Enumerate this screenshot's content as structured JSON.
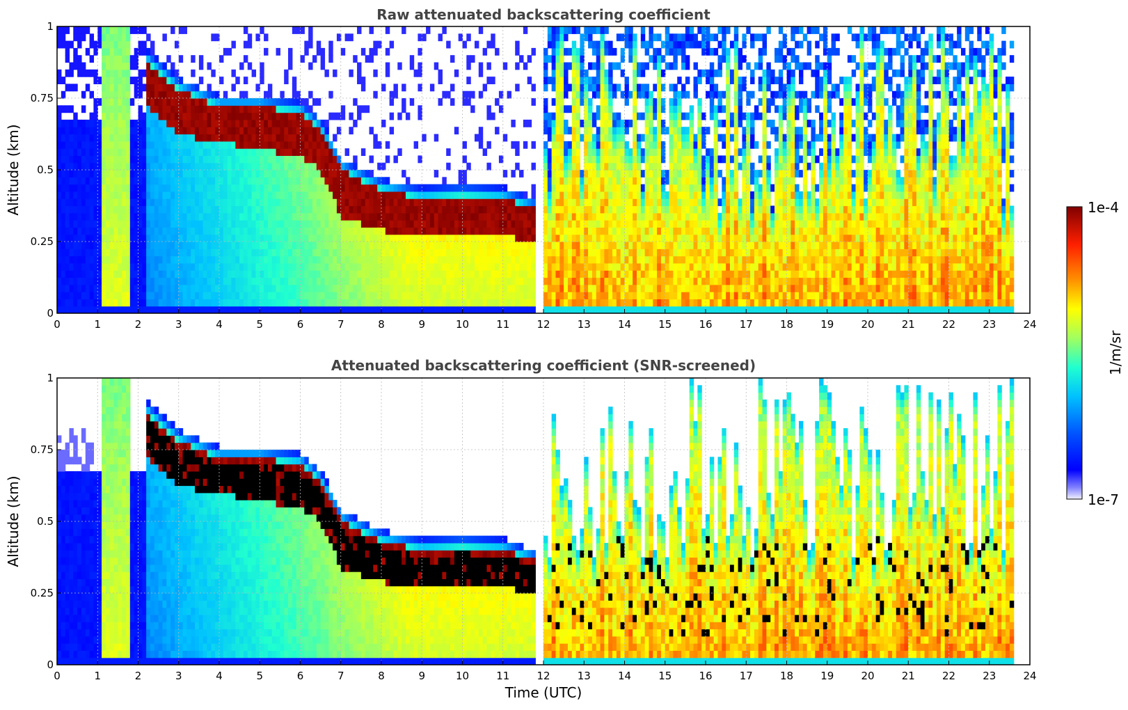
{
  "chart_data": [
    {
      "type": "heatmap",
      "title": "Raw attenuated backscattering coefficient",
      "xlabel": "",
      "ylabel": "Altitude (km)",
      "xlim": [
        0,
        24
      ],
      "ylim": [
        0,
        1
      ],
      "xticks": [
        "0",
        "1",
        "2",
        "3",
        "4",
        "5",
        "6",
        "7",
        "8",
        "9",
        "10",
        "11",
        "12",
        "13",
        "14",
        "15",
        "16",
        "17",
        "18",
        "19",
        "20",
        "21",
        "22",
        "23",
        "24"
      ],
      "yticks": [
        "0",
        "0.25",
        "0.5",
        "0.75",
        "1"
      ],
      "grid": true,
      "screened": false,
      "cloud_layer": {
        "x": [
          2.2,
          3,
          4,
          5,
          6,
          6.5,
          7,
          8,
          9,
          10,
          11,
          11.8
        ],
        "top": [
          0.88,
          0.78,
          0.72,
          0.72,
          0.7,
          0.64,
          0.5,
          0.43,
          0.4,
          0.41,
          0.4,
          0.36
        ],
        "base": [
          0.72,
          0.62,
          0.6,
          0.57,
          0.55,
          0.5,
          0.34,
          0.29,
          0.27,
          0.28,
          0.27,
          0.25
        ]
      },
      "data_gap_utc": [
        11.8,
        12.0
      ],
      "data_end_utc": 23.65
    },
    {
      "type": "heatmap",
      "title": "Attenuated backscattering coefficient (SNR-screened)",
      "xlabel": "Time (UTC)",
      "ylabel": "Altitude (km)",
      "xlim": [
        0,
        24
      ],
      "ylim": [
        0,
        1
      ],
      "xticks": [
        "0",
        "1",
        "2",
        "3",
        "4",
        "5",
        "6",
        "7",
        "8",
        "9",
        "10",
        "11",
        "12",
        "13",
        "14",
        "15",
        "16",
        "17",
        "18",
        "19",
        "20",
        "21",
        "22",
        "23",
        "24"
      ],
      "yticks": [
        "0",
        "0.25",
        "0.5",
        "0.75",
        "1"
      ],
      "grid": true,
      "screened": true,
      "cloud_layer": {
        "x": [
          2.2,
          3,
          4,
          5,
          6,
          6.5,
          7,
          8,
          9,
          10,
          11,
          11.8
        ],
        "top": [
          0.88,
          0.78,
          0.72,
          0.72,
          0.7,
          0.64,
          0.5,
          0.43,
          0.4,
          0.41,
          0.4,
          0.36
        ],
        "base": [
          0.72,
          0.62,
          0.6,
          0.57,
          0.55,
          0.5,
          0.34,
          0.29,
          0.27,
          0.28,
          0.27,
          0.25
        ]
      },
      "data_gap_utc": [
        11.8,
        12.0
      ],
      "data_end_utc": 23.65
    }
  ],
  "colorbar": {
    "label": "1/m/sr",
    "max_label": "1e-4",
    "min_label": "1e-7",
    "colormap": "jet"
  }
}
